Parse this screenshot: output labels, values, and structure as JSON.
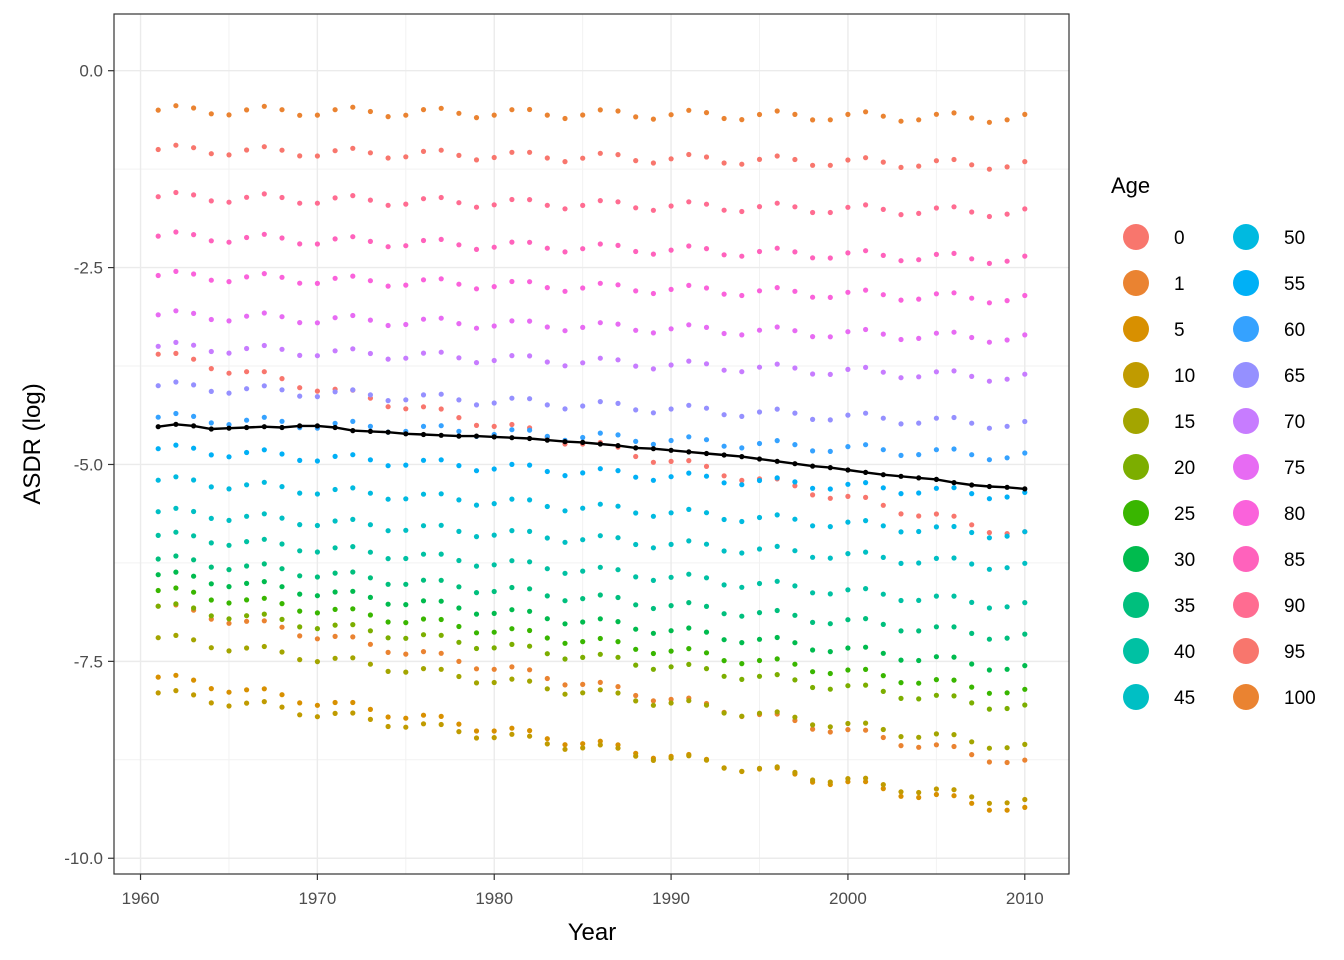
{
  "chart_data": {
    "type": "scatter",
    "title": "",
    "xlabel": "Year",
    "ylabel": "ASDR (log)",
    "xlim": [
      1958.5,
      2012.5
    ],
    "ylim": [
      -10.2,
      0.72
    ],
    "x_ticks": [
      1960,
      1970,
      1980,
      1990,
      2000,
      2010
    ],
    "x_tick_labels": [
      "1960",
      "1970",
      "1980",
      "1990",
      "2000",
      "2010"
    ],
    "y_ticks": [
      0,
      -2.5,
      -5,
      -7.5,
      -10
    ],
    "y_tick_labels": [
      "0.0",
      "-2.5",
      "-5.0",
      "-7.5",
      "-10.0"
    ],
    "grid": true,
    "theme": "bw",
    "legend": {
      "title": "Age",
      "placement": "right",
      "columns": 2,
      "entries": [
        {
          "label": "0",
          "color": "#F8766D"
        },
        {
          "label": "1",
          "color": "#EA8331"
        },
        {
          "label": "5",
          "color": "#D89000"
        },
        {
          "label": "10",
          "color": "#C09B00"
        },
        {
          "label": "15",
          "color": "#A3A500"
        },
        {
          "label": "20",
          "color": "#7CAE00"
        },
        {
          "label": "25",
          "color": "#39B600"
        },
        {
          "label": "30",
          "color": "#00BB4E"
        },
        {
          "label": "35",
          "color": "#00BF7D"
        },
        {
          "label": "40",
          "color": "#00C1A3"
        },
        {
          "label": "45",
          "color": "#00BFC4"
        },
        {
          "label": "50",
          "color": "#00BAE0"
        },
        {
          "label": "55",
          "color": "#00B0F6"
        },
        {
          "label": "60",
          "color": "#35A2FF"
        },
        {
          "label": "65",
          "color": "#9590FF"
        },
        {
          "label": "70",
          "color": "#C77CFF"
        },
        {
          "label": "75",
          "color": "#E76BF3"
        },
        {
          "label": "80",
          "color": "#FA62DB"
        },
        {
          "label": "85",
          "color": "#FF62BC"
        },
        {
          "label": "90",
          "color": "#FF6C91"
        },
        {
          "label": "95",
          "color": "#F8766D"
        },
        {
          "label": "100",
          "color": "#EA8331"
        }
      ]
    },
    "years": [
      1961,
      1962,
      1963,
      1964,
      1965,
      1966,
      1967,
      1968,
      1969,
      1970,
      1971,
      1972,
      1973,
      1974,
      1975,
      1976,
      1977,
      1978,
      1979,
      1980,
      1981,
      1982,
      1983,
      1984,
      1985,
      1986,
      1987,
      1988,
      1989,
      1990,
      1991,
      1992,
      1993,
      1994,
      1995,
      1996,
      1997,
      1998,
      1999,
      2000,
      2001,
      2002,
      2003,
      2004,
      2005,
      2006,
      2007,
      2008,
      2009,
      2010
    ],
    "age_asdr_1961": [
      -3.6,
      -6.8,
      -7.7,
      -7.9,
      -7.2,
      -6.8,
      -6.6,
      -6.4,
      -6.2,
      -5.9,
      -5.6,
      -5.2,
      -4.8,
      -4.4,
      -4.0,
      -3.5,
      -3.1,
      -2.6,
      -2.1,
      -1.6,
      -1.0,
      -0.5
    ],
    "age_asdr_2010": [
      -5.9,
      -8.8,
      -9.4,
      -9.3,
      -8.6,
      -8.1,
      -7.9,
      -7.6,
      -7.2,
      -6.8,
      -6.3,
      -5.9,
      -5.4,
      -4.9,
      -4.5,
      -3.9,
      -3.4,
      -2.9,
      -2.4,
      -1.8,
      -1.2,
      -0.6
    ],
    "series": [
      {
        "name": "",
        "color": "#000000",
        "values": [
          -4.52,
          -4.49,
          -4.51,
          -4.55,
          -4.54,
          -4.53,
          -4.52,
          -4.53,
          -4.51,
          -4.51,
          -4.53,
          -4.57,
          -4.58,
          -4.59,
          -4.61,
          -4.62,
          -4.63,
          -4.64,
          -4.64,
          -4.65,
          -4.66,
          -4.67,
          -4.69,
          -4.71,
          -4.72,
          -4.74,
          -4.76,
          -4.79,
          -4.8,
          -4.82,
          -4.84,
          -4.86,
          -4.88,
          -4.9,
          -4.93,
          -4.96,
          -4.99,
          -5.02,
          -5.04,
          -5.07,
          -5.1,
          -5.13,
          -5.15,
          -5.17,
          -5.19,
          -5.23,
          -5.26,
          -5.28,
          -5.29,
          -5.31
        ]
      }
    ]
  }
}
